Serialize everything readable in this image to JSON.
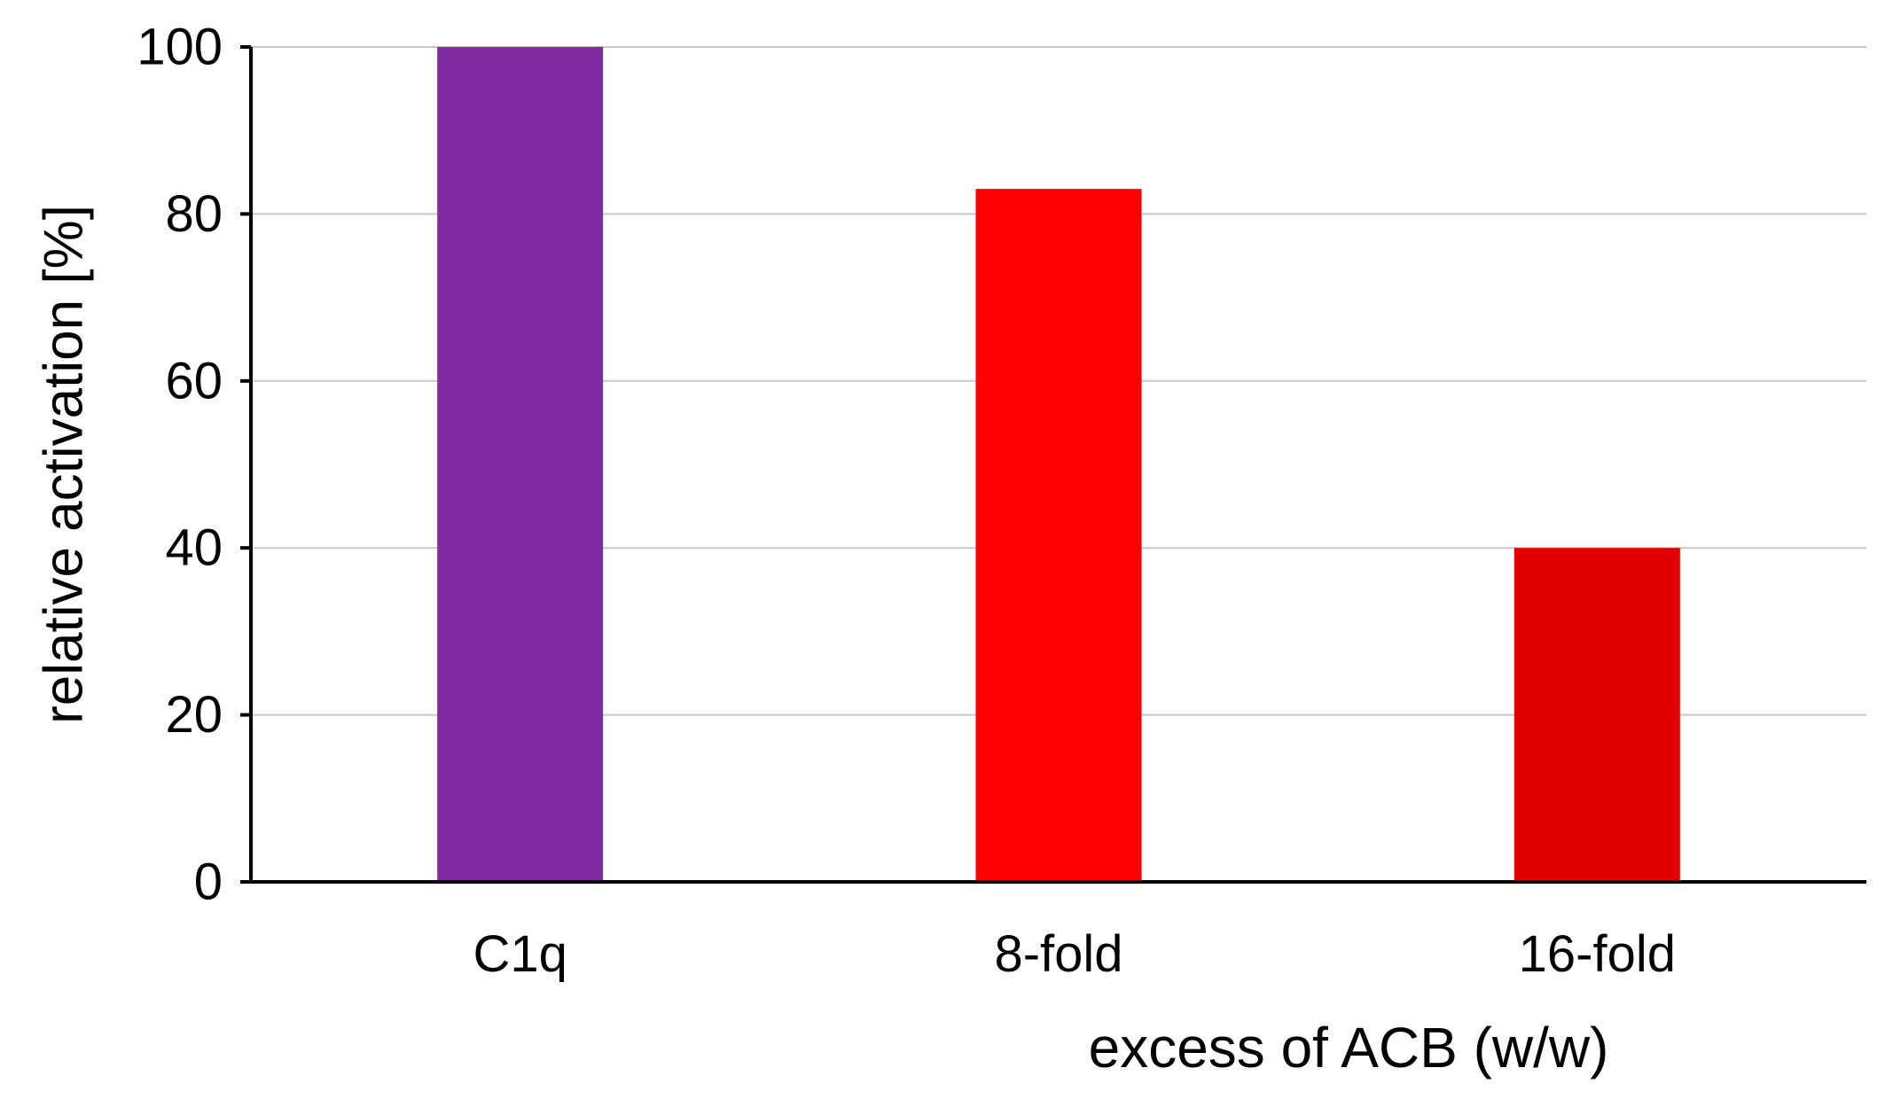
{
  "chart_data": {
    "type": "bar",
    "title": "",
    "xlabel": "excess of ACB (w/w)",
    "ylabel": "relative activation [%]",
    "categories": [
      "C1q",
      "8-fold",
      "16-fold"
    ],
    "values": [
      100,
      83,
      40
    ],
    "colors": [
      "#7F2B9F",
      "#FF0000",
      "#E00000"
    ],
    "ylim": [
      0,
      100
    ],
    "yticks": [
      0,
      20,
      40,
      60,
      80,
      100
    ],
    "grid": true,
    "legend": "none"
  },
  "colors": {
    "grid": "#C8C8C8",
    "axis": "#000000",
    "text": "#000000"
  }
}
